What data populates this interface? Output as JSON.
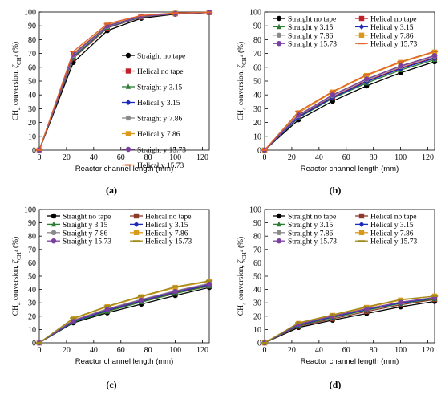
{
  "chart_data": [
    {
      "type": "line",
      "panel_label": "(a)",
      "xlabel": "Reactor channel length (mm)",
      "ylabel_main": "CH",
      "ylabel_sub": "4",
      "ylabel_rest": " conversion, ",
      "ylabel_sym": "ζ",
      "ylabel_symsub": "CH",
      "ylabel_symsub2": "4",
      "ylabel_unit": " (%)",
      "xlim": [
        0,
        125
      ],
      "ylim": [
        0,
        100
      ],
      "xticks": [
        0,
        20,
        40,
        60,
        80,
        100,
        120
      ],
      "yticks": [
        0,
        10,
        20,
        30,
        40,
        50,
        60,
        70,
        80,
        90,
        100
      ],
      "legend_layout": "right-column",
      "x": [
        0,
        25,
        50,
        75,
        100,
        125
      ],
      "series": [
        {
          "name": "Straight no tape",
          "color": "#000000",
          "marker": "circle",
          "values": [
            0,
            63.5,
            86.5,
            95.5,
            98.5,
            99.6
          ]
        },
        {
          "name": "Helical no tape",
          "color": "#c0202b",
          "marker": "square",
          "values": [
            0,
            66.5,
            88.5,
            96.3,
            98.8,
            99.6
          ]
        },
        {
          "name": "Straight y 3.15",
          "color": "#2e7d32",
          "marker": "triangle",
          "values": [
            0,
            67,
            88.8,
            96.4,
            98.9,
            99.7
          ]
        },
        {
          "name": "Helical y 3.15",
          "color": "#1e2bb8",
          "marker": "diamond",
          "values": [
            0,
            68,
            89.2,
            96.6,
            98.9,
            99.7
          ]
        },
        {
          "name": "Straight y 7.86",
          "color": "#8a8a8a",
          "marker": "circle",
          "values": [
            0,
            68.5,
            89.5,
            96.7,
            99,
            99.7
          ]
        },
        {
          "name": "Helical y 7.86",
          "color": "#d99a1c",
          "marker": "square",
          "values": [
            0,
            70,
            90.5,
            97,
            99.1,
            99.8
          ]
        },
        {
          "name": "Straight y 15.73",
          "color": "#7b3fa0",
          "marker": "circle",
          "values": [
            0,
            69.5,
            90,
            96.9,
            99,
            99.8
          ]
        },
        {
          "name": "Helical y 15.73",
          "color": "#e2622a",
          "marker": "hline",
          "values": [
            0,
            71.5,
            91.5,
            97.5,
            99.3,
            99.8
          ]
        }
      ]
    },
    {
      "type": "line",
      "panel_label": "(b)",
      "xlabel": "Reactor channel length (mm)",
      "ylabel_main": "CH",
      "ylabel_sub": "4",
      "ylabel_rest": " conversion, ",
      "ylabel_sym": "ζ",
      "ylabel_symsub": "CH",
      "ylabel_symsub2": "4",
      "ylabel_unit": " (%)",
      "xlim": [
        0,
        125
      ],
      "ylim": [
        0,
        100
      ],
      "xticks": [
        0,
        20,
        40,
        60,
        80,
        100,
        120
      ],
      "yticks": [
        0,
        10,
        20,
        30,
        40,
        50,
        60,
        70,
        80,
        90,
        100
      ],
      "legend_layout": "two-column-top",
      "x": [
        0,
        25,
        50,
        75,
        100,
        125
      ],
      "series": [
        {
          "name": "Straight no tape",
          "color": "#000000",
          "marker": "circle",
          "values": [
            0,
            22,
            35.5,
            46.5,
            56,
            64
          ]
        },
        {
          "name": "Helical no tape",
          "color": "#c0202b",
          "marker": "square",
          "values": [
            0,
            24.5,
            38.5,
            50,
            59.5,
            67
          ]
        },
        {
          "name": "Straight y 3.15",
          "color": "#2e7d32",
          "marker": "triangle",
          "values": [
            0,
            23.5,
            37.5,
            48.5,
            58,
            65.5
          ]
        },
        {
          "name": "Helical y 3.15",
          "color": "#1e2bb8",
          "marker": "diamond",
          "values": [
            0,
            24,
            38,
            49.5,
            59,
            66.5
          ]
        },
        {
          "name": "Straight y 7.86",
          "color": "#8a8a8a",
          "marker": "circle",
          "values": [
            0,
            25,
            39.5,
            51,
            60.5,
            68
          ]
        },
        {
          "name": "Helical y 7.86",
          "color": "#d99a1c",
          "marker": "square",
          "values": [
            0,
            27,
            42,
            54,
            63.5,
            71
          ]
        },
        {
          "name": "Straight y 15.73",
          "color": "#7b3fa0",
          "marker": "circle",
          "values": [
            0,
            25.5,
            40,
            51.5,
            61,
            68.5
          ]
        },
        {
          "name": "Helical y 15.73",
          "color": "#e2622a",
          "marker": "hline",
          "values": [
            0,
            28,
            42.5,
            54.5,
            64,
            71.5
          ]
        }
      ]
    },
    {
      "type": "line",
      "panel_label": "(c)",
      "xlabel": "Reactor channel length (mm)",
      "ylabel_main": "CH",
      "ylabel_sub": "4",
      "ylabel_rest": " conversion, ",
      "ylabel_sym": "ζ",
      "ylabel_symsub": "CH",
      "ylabel_symsub2": "4",
      "ylabel_unit": " (%)",
      "xlim": [
        0,
        125
      ],
      "ylim": [
        0,
        100
      ],
      "xticks": [
        0,
        20,
        40,
        60,
        80,
        100,
        120
      ],
      "yticks": [
        0,
        10,
        20,
        30,
        40,
        50,
        60,
        70,
        80,
        90,
        100
      ],
      "legend_layout": "two-column-top",
      "x": [
        0,
        25,
        50,
        75,
        100,
        125
      ],
      "series": [
        {
          "name": "Straight no tape",
          "color": "#000000",
          "marker": "circle",
          "values": [
            0,
            15,
            22.5,
            29,
            35.5,
            41.5
          ]
        },
        {
          "name": "Helical no tape",
          "color": "#8b3a2b",
          "marker": "square",
          "values": [
            0,
            16,
            24,
            31,
            37.5,
            43
          ]
        },
        {
          "name": "Straight y 3.15",
          "color": "#2e7d32",
          "marker": "triangle",
          "values": [
            0,
            15.5,
            23.5,
            30.5,
            37,
            42.5
          ]
        },
        {
          "name": "Helical y 3.15",
          "color": "#1e2bb8",
          "marker": "diamond",
          "values": [
            0,
            16,
            24.5,
            31.5,
            38,
            43.5
          ]
        },
        {
          "name": "Straight y 7.86",
          "color": "#8a8a8a",
          "marker": "circle",
          "values": [
            0,
            17,
            25.5,
            32.5,
            39,
            44.5
          ]
        },
        {
          "name": "Helical y 7.86",
          "color": "#d99a1c",
          "marker": "square",
          "values": [
            0,
            18,
            27,
            34.5,
            41.5,
            46
          ]
        },
        {
          "name": "Straight y 15.73",
          "color": "#7b3fa0",
          "marker": "circle",
          "values": [
            0,
            16.5,
            25,
            32,
            38.5,
            44
          ]
        },
        {
          "name": "Helical y 15.73",
          "color": "#a08a1a",
          "marker": "hline",
          "values": [
            0,
            18.5,
            27.5,
            35,
            42,
            46.5
          ]
        }
      ]
    },
    {
      "type": "line",
      "panel_label": "(d)",
      "xlabel": "Reactor channel length (mm)",
      "ylabel_main": "CH",
      "ylabel_sub": "4",
      "ylabel_rest": " conversion, ",
      "ylabel_sym": "ζ",
      "ylabel_symsub": "CH",
      "ylabel_symsub2": "4",
      "ylabel_unit": " (%)",
      "xlim": [
        0,
        125
      ],
      "ylim": [
        0,
        100
      ],
      "xticks": [
        0,
        20,
        40,
        60,
        80,
        100,
        120
      ],
      "yticks": [
        0,
        10,
        20,
        30,
        40,
        50,
        60,
        70,
        80,
        90,
        100
      ],
      "legend_layout": "two-column-top",
      "x": [
        0,
        25,
        50,
        75,
        100,
        125
      ],
      "series": [
        {
          "name": "Straight no tape",
          "color": "#000000",
          "marker": "circle",
          "values": [
            0,
            11.5,
            17,
            22,
            27,
            31
          ]
        },
        {
          "name": "Helical no tape",
          "color": "#8b3a2b",
          "marker": "square",
          "values": [
            0,
            12.5,
            18,
            23.5,
            28.5,
            32.5
          ]
        },
        {
          "name": "Straight y 3.15",
          "color": "#2e7d32",
          "marker": "triangle",
          "values": [
            0,
            13,
            19,
            24.5,
            29.5,
            33
          ]
        },
        {
          "name": "Helical y 3.15",
          "color": "#1e2bb8",
          "marker": "diamond",
          "values": [
            0,
            13.5,
            19.5,
            25,
            30,
            33.5
          ]
        },
        {
          "name": "Straight y 7.86",
          "color": "#8a8a8a",
          "marker": "circle",
          "values": [
            0,
            14,
            20,
            25.5,
            30.5,
            34
          ]
        },
        {
          "name": "Helical y 7.86",
          "color": "#d99a1c",
          "marker": "square",
          "values": [
            0,
            14.5,
            20.5,
            26.5,
            32,
            35
          ]
        },
        {
          "name": "Straight y 15.73",
          "color": "#7b3fa0",
          "marker": "circle",
          "values": [
            0,
            14,
            20,
            25.5,
            30.5,
            34
          ]
        },
        {
          "name": "Helical y 15.73",
          "color": "#a08a1a",
          "marker": "hline",
          "values": [
            0,
            15,
            21,
            27,
            32.5,
            35
          ]
        }
      ]
    }
  ]
}
